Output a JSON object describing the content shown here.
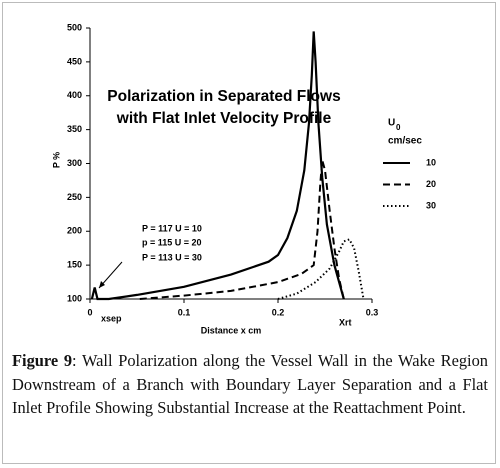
{
  "chart_data": {
    "type": "line",
    "title": [
      "Polarization in Separated Flows",
      "with Flat Inlet Velocity Profile"
    ],
    "x_label": "Distance x cm",
    "y_label": "P %",
    "legend_title": {
      "symbol": "U",
      "subscript": "0",
      "unit": "cm/sec"
    },
    "annotations": [
      "P = 117 U = 10",
      "p = 115 U = 20",
      "P = 113 U = 30"
    ],
    "markers": [
      {
        "label": "xsep"
      },
      {
        "label": "Xrt"
      }
    ],
    "xlim": [
      0,
      0.3
    ],
    "ylim": [
      100,
      500
    ],
    "xticks": [
      0,
      0.1,
      0.2,
      0.3
    ],
    "yticks": [
      100,
      150,
      200,
      250,
      300,
      350,
      400,
      450,
      500
    ],
    "grid": false,
    "series": [
      {
        "name": "10",
        "color": "#000000",
        "style": "solid",
        "x": [
          0.002,
          0.005,
          0.008,
          0.02,
          0.05,
          0.1,
          0.15,
          0.19,
          0.2,
          0.21,
          0.22,
          0.228,
          0.233,
          0.236,
          0.238,
          0.24,
          0.243,
          0.247,
          0.252,
          0.26,
          0.27
        ],
        "values": [
          100,
          117,
          100,
          100,
          106,
          118,
          136,
          155,
          165,
          190,
          230,
          290,
          360,
          430,
          495,
          450,
          360,
          280,
          210,
          150,
          100
        ]
      },
      {
        "name": "20",
        "color": "#000000",
        "style": "dashed",
        "x": [
          0.053,
          0.1,
          0.15,
          0.2,
          0.225,
          0.238,
          0.242,
          0.245,
          0.247,
          0.25,
          0.255,
          0.26,
          0.265,
          0.27
        ],
        "values": [
          100,
          105,
          112,
          125,
          137,
          150,
          200,
          270,
          305,
          290,
          230,
          175,
          130,
          100
        ]
      },
      {
        "name": "30",
        "color": "#000000",
        "style": "dotted",
        "x": [
          0.2,
          0.22,
          0.24,
          0.255,
          0.265,
          0.27,
          0.276,
          0.281,
          0.286,
          0.291
        ],
        "values": [
          100,
          108,
          125,
          145,
          170,
          185,
          188,
          175,
          140,
          100
        ]
      }
    ],
    "caption": {
      "label": "Figure 9",
      "text": ": Wall Polarization along the Vessel Wall in the Wake Region Downstream of a Branch with Boundary Layer Separation and a Flat Inlet Profile Showing Substantial Increase at the Reattachment Point."
    }
  }
}
